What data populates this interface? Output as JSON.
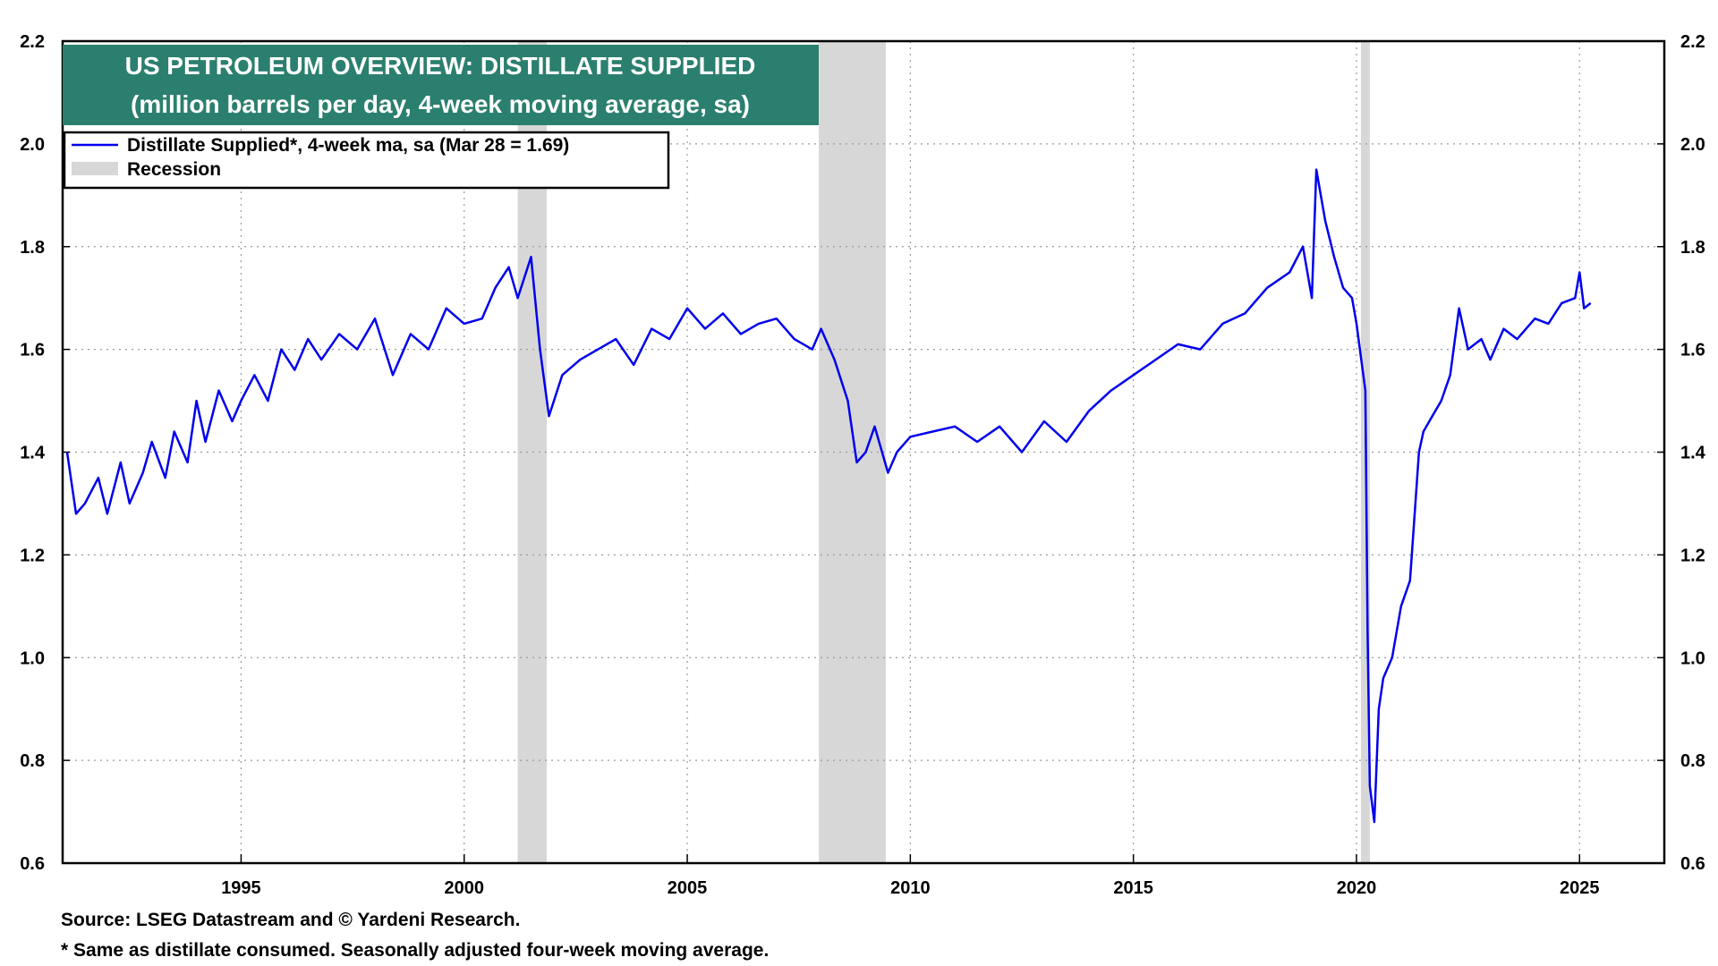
{
  "chart_data": {
    "type": "line",
    "title": "US PETROLEUM OVERVIEW: DISTILLATE SUPPLIED",
    "subtitle": "(million barrels per day, 4-week moving average, sa)",
    "xlabel": "",
    "ylabel": "",
    "xlim": [
      1991.0,
      2026.9
    ],
    "ylim": [
      0.6,
      2.2
    ],
    "y_ticks": [
      0.6,
      0.8,
      1.0,
      1.2,
      1.4,
      1.6,
      1.8,
      2.0,
      2.2
    ],
    "y_tick_labels": [
      "0.6",
      "0.8",
      "1.0",
      "1.2",
      "1.4",
      "1.6",
      "1.8",
      "2.0",
      "2.2"
    ],
    "x_ticks": [
      1995,
      2000,
      2005,
      2010,
      2015,
      2020,
      2025
    ],
    "x_tick_labels": [
      "1995",
      "2000",
      "2005",
      "2010",
      "2015",
      "2020",
      "2025"
    ],
    "grid": true,
    "legend_position": "top-left",
    "legend": [
      {
        "label": "Distillate Supplied*, 4-week ma, sa (Mar 28 = 1.69)",
        "kind": "line",
        "color": "#0000ee"
      },
      {
        "label": "Recession",
        "kind": "band",
        "color": "#d7d7d7"
      }
    ],
    "recessions": [
      {
        "start": 2001.2,
        "end": 2001.85
      },
      {
        "start": 2007.95,
        "end": 2009.45
      },
      {
        "start": 2020.1,
        "end": 2020.3
      }
    ],
    "series": [
      {
        "name": "Distillate Supplied*, 4-week ma, sa",
        "color": "#0000ee",
        "x": [
          1991.1,
          1991.3,
          1991.5,
          1991.8,
          1992.0,
          1992.3,
          1992.5,
          1992.8,
          1993.0,
          1993.3,
          1993.5,
          1993.8,
          1994.0,
          1994.2,
          1994.5,
          1994.8,
          1995.0,
          1995.3,
          1995.6,
          1995.9,
          1996.2,
          1996.5,
          1996.8,
          1997.2,
          1997.6,
          1998.0,
          1998.4,
          1998.8,
          1999.2,
          1999.6,
          2000.0,
          2000.4,
          2000.7,
          2001.0,
          2001.2,
          2001.5,
          2001.7,
          2001.9,
          2002.2,
          2002.6,
          2003.0,
          2003.4,
          2003.8,
          2004.2,
          2004.6,
          2005.0,
          2005.4,
          2005.8,
          2006.2,
          2006.6,
          2007.0,
          2007.4,
          2007.8,
          2008.0,
          2008.3,
          2008.6,
          2008.8,
          2009.0,
          2009.2,
          2009.5,
          2009.7,
          2010.0,
          2010.5,
          2011.0,
          2011.5,
          2012.0,
          2012.5,
          2013.0,
          2013.5,
          2014.0,
          2014.5,
          2015.0,
          2015.5,
          2016.0,
          2016.5,
          2017.0,
          2017.5,
          2018.0,
          2018.5,
          2018.8,
          2019.0,
          2019.1,
          2019.3,
          2019.5,
          2019.7,
          2019.9,
          2020.0,
          2020.2,
          2020.25,
          2020.3,
          2020.4,
          2020.5,
          2020.6,
          2020.8,
          2021.0,
          2021.2,
          2021.4,
          2021.5,
          2021.7,
          2021.9,
          2022.1,
          2022.3,
          2022.5,
          2022.8,
          2023.0,
          2023.3,
          2023.6,
          2024.0,
          2024.3,
          2024.6,
          2024.9,
          2025.0,
          2025.1,
          2025.25
        ],
        "values": [
          1.4,
          1.28,
          1.3,
          1.35,
          1.28,
          1.38,
          1.3,
          1.36,
          1.42,
          1.35,
          1.44,
          1.38,
          1.5,
          1.42,
          1.52,
          1.46,
          1.5,
          1.55,
          1.5,
          1.6,
          1.56,
          1.62,
          1.58,
          1.63,
          1.6,
          1.66,
          1.55,
          1.63,
          1.6,
          1.68,
          1.65,
          1.66,
          1.72,
          1.76,
          1.7,
          1.78,
          1.6,
          1.47,
          1.55,
          1.58,
          1.6,
          1.62,
          1.57,
          1.64,
          1.62,
          1.68,
          1.64,
          1.67,
          1.63,
          1.65,
          1.66,
          1.62,
          1.6,
          1.64,
          1.58,
          1.5,
          1.38,
          1.4,
          1.45,
          1.36,
          1.4,
          1.43,
          1.44,
          1.45,
          1.42,
          1.45,
          1.4,
          1.46,
          1.42,
          1.48,
          1.52,
          1.55,
          1.58,
          1.61,
          1.6,
          1.65,
          1.67,
          1.72,
          1.75,
          1.8,
          1.7,
          1.95,
          1.85,
          1.78,
          1.72,
          1.7,
          1.65,
          1.52,
          1.05,
          0.75,
          0.68,
          0.9,
          0.96,
          1.0,
          1.1,
          1.15,
          1.4,
          1.44,
          1.47,
          1.5,
          1.55,
          1.68,
          1.6,
          1.62,
          1.58,
          1.64,
          1.62,
          1.66,
          1.65,
          1.69,
          1.7,
          1.75,
          1.68,
          1.69
        ]
      }
    ]
  },
  "footnotes": {
    "source": "Source: LSEG Datastream and © Yardeni Research.",
    "note": "* Same as distillate consumed. Seasonally adjusted four-week moving average."
  }
}
